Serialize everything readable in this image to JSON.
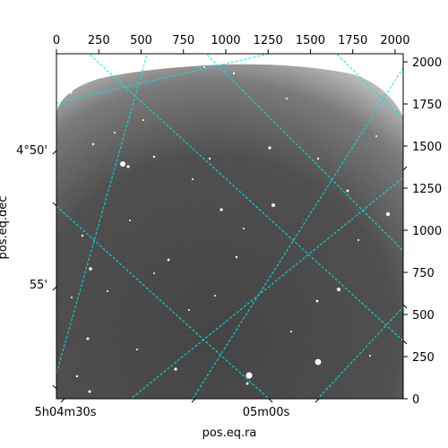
{
  "axes": {
    "xlabel": "pos.eq.ra",
    "ylabel": "pos.eq.dec",
    "top_ticks": [
      "0",
      "250",
      "500",
      "750",
      "1000",
      "1250",
      "1500",
      "1750",
      "2000"
    ],
    "right_ticks": [
      "0",
      "250",
      "500",
      "750",
      "1000",
      "1250",
      "1500",
      "1750",
      "2000"
    ],
    "left_ticks": [
      "4°50'",
      "55'"
    ],
    "bottom_ticks": [
      "5h04m30s",
      "05m00s"
    ]
  },
  "colors": {
    "grid": "#00e5e5",
    "frame": "#000000"
  }
}
